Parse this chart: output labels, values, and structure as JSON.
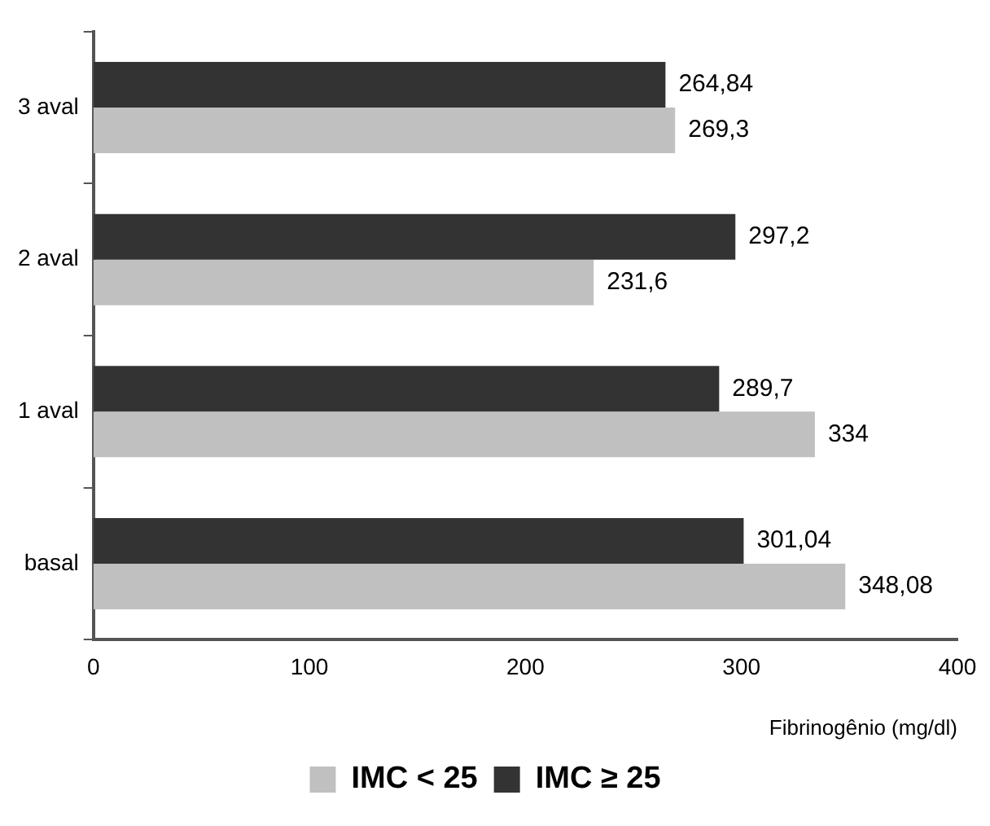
{
  "chart_data": {
    "type": "bar",
    "orientation": "horizontal",
    "xlabel": "Fibrinogênio (mg/dl)",
    "categories": [
      "3 aval",
      "2 aval",
      "1 aval",
      "basal"
    ],
    "series": [
      {
        "name": "IMC ≥ 25",
        "color": "#333333",
        "values": [
          264.84,
          297.2,
          289.7,
          301.04
        ],
        "value_labels": [
          "264,84",
          "297,2",
          "289,7",
          "301,04"
        ]
      },
      {
        "name": "IMC < 25",
        "color": "#c0c0c0",
        "values": [
          269.3,
          231.6,
          334,
          348.08
        ],
        "value_labels": [
          "269,3",
          "231,6",
          "334",
          "348,08"
        ]
      }
    ],
    "xlim": [
      0,
      400
    ],
    "xticks": [
      0,
      100,
      200,
      300,
      400
    ],
    "grid": false,
    "legend": "bottom"
  }
}
